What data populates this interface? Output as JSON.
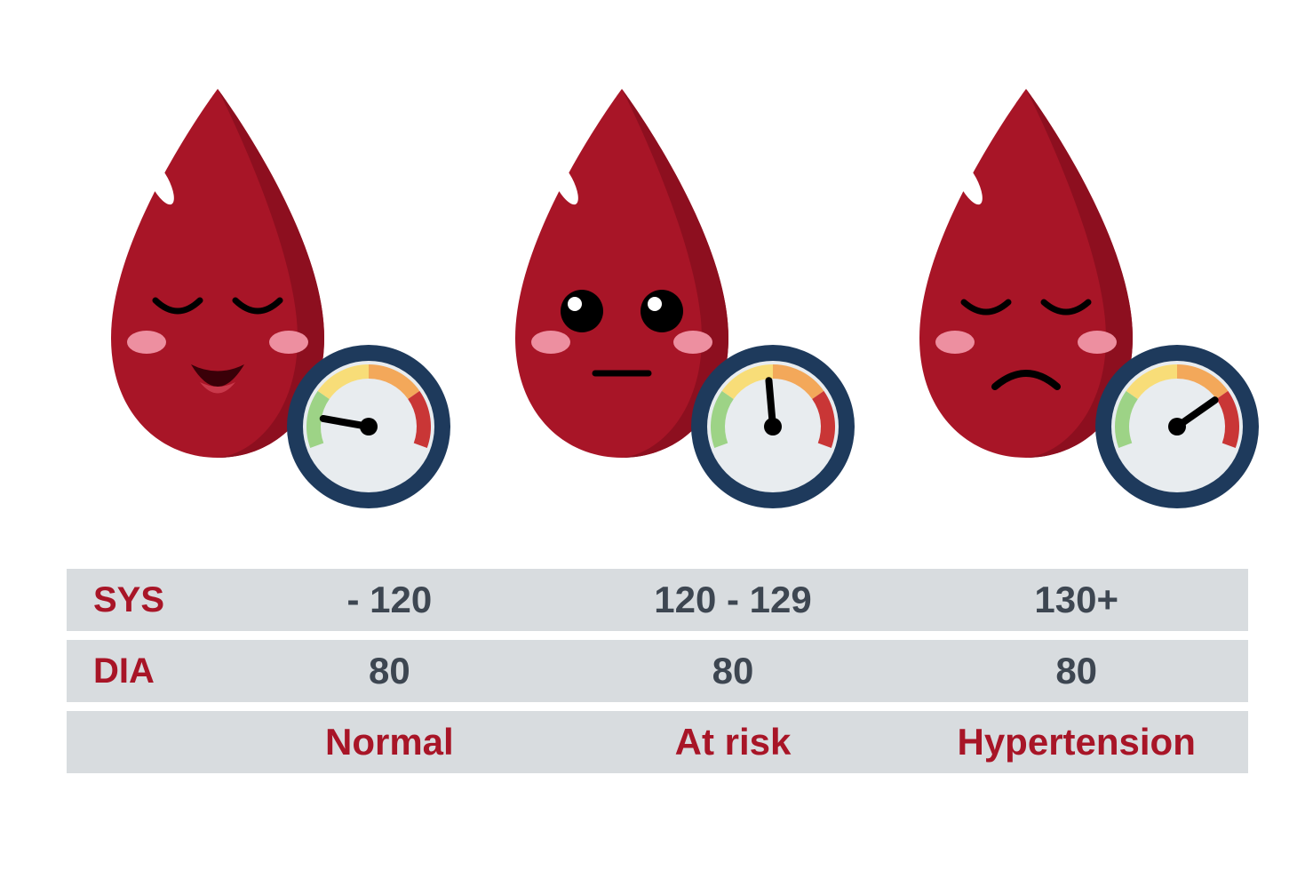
{
  "infographic": {
    "type": "infographic",
    "colors": {
      "drop_main": "#a81527",
      "drop_dark": "#8d0f1f",
      "drop_highlight": "#ffffff",
      "drop_cheek": "#ed8fa0",
      "drop_tongue": "#c9394b",
      "drop_mouth_dark": "#3a0008",
      "gauge_ring": "#1e3a5c",
      "gauge_face": "#e8ecef",
      "gauge_green": "#9dd386",
      "gauge_yellow": "#f8dd78",
      "gauge_orange": "#f3a85a",
      "gauge_red": "#c93636",
      "gauge_needle": "#000000",
      "table_row_bg": "#d8dcdf",
      "label_color": "#a81527",
      "value_color": "#3d4651",
      "status_color": "#a81527",
      "background": "#ffffff"
    },
    "drops": [
      {
        "expression": "happy",
        "gauge_angle": -80
      },
      {
        "expression": "neutral",
        "gauge_angle": -5
      },
      {
        "expression": "sad",
        "gauge_angle": 55
      }
    ],
    "table": {
      "row1": {
        "label": "SYS",
        "values": [
          "- 120",
          "120 - 129",
          "130+"
        ]
      },
      "row2": {
        "label": "DIA",
        "values": [
          "80",
          "80",
          "80"
        ]
      },
      "row3": {
        "label": "",
        "values": [
          "Normal",
          "At risk",
          "Hypertension"
        ]
      }
    },
    "fonts": {
      "label_size": 40,
      "value_size": 42,
      "status_size": 42,
      "weight": "bold"
    }
  }
}
